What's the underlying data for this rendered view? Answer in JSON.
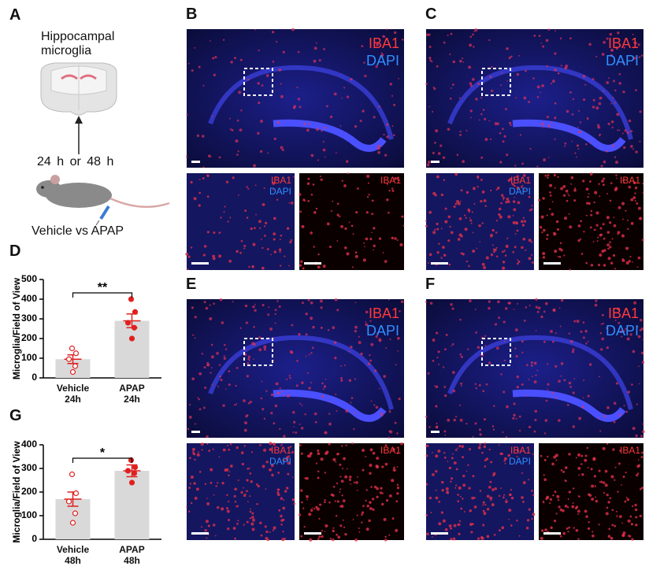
{
  "panel_a": {
    "label": "A",
    "title": "Hippocampal\nmicroglia",
    "time": "24 h  or  48 h",
    "groups": "Vehicle vs APAP"
  },
  "panels": [
    {
      "label": "B",
      "main": [
        "IBA1",
        "DAPI"
      ],
      "inset_merge": [
        "IBA1",
        "DAPI"
      ],
      "inset_red": "IBA1"
    },
    {
      "label": "C",
      "main": [
        "IBA1",
        "DAPI"
      ],
      "inset_merge": [
        "IBA1",
        "DAPI"
      ],
      "inset_red": "IBA1"
    },
    {
      "label": "E",
      "main": [
        "IBA1",
        "DAPI"
      ],
      "inset_merge": [
        "IBA1",
        "DAPI"
      ],
      "inset_red": "IBA1"
    },
    {
      "label": "F",
      "main": [
        "IBA1",
        "DAPI"
      ],
      "inset_merge": [
        "IBA1",
        "DAPI"
      ],
      "inset_red": "IBA1"
    }
  ],
  "chart_data": [
    {
      "type": "bar",
      "panel": "D",
      "y_label": "Microglia/Field of View",
      "categories": [
        "Vehicle\n24h",
        "APAP\n24h"
      ],
      "values": [
        95,
        290
      ],
      "errors": [
        22,
        35
      ],
      "points": [
        [
          150,
          125,
          95,
          60,
          30
        ],
        [
          400,
          335,
          280,
          255,
          200
        ]
      ],
      "color": "#d9d9d9",
      "point_color": "#e02020",
      "significance": "**",
      "ylim": [
        0,
        500
      ],
      "yticks": [
        0,
        100,
        200,
        300,
        400,
        500
      ]
    },
    {
      "type": "bar",
      "panel": "G",
      "y_label": "Microglia/Field of View",
      "categories": [
        "Vehicle\n48h",
        "APAP\n48h"
      ],
      "values": [
        170,
        290
      ],
      "errors": [
        30,
        25
      ],
      "points": [
        [
          275,
          195,
          160,
          110,
          70
        ],
        [
          335,
          305,
          290,
          280,
          240
        ]
      ],
      "color": "#d9d9d9",
      "point_color": "#e02020",
      "significance": "*",
      "ylim": [
        0,
        400
      ],
      "yticks": [
        0,
        100,
        200,
        300,
        400
      ]
    }
  ]
}
